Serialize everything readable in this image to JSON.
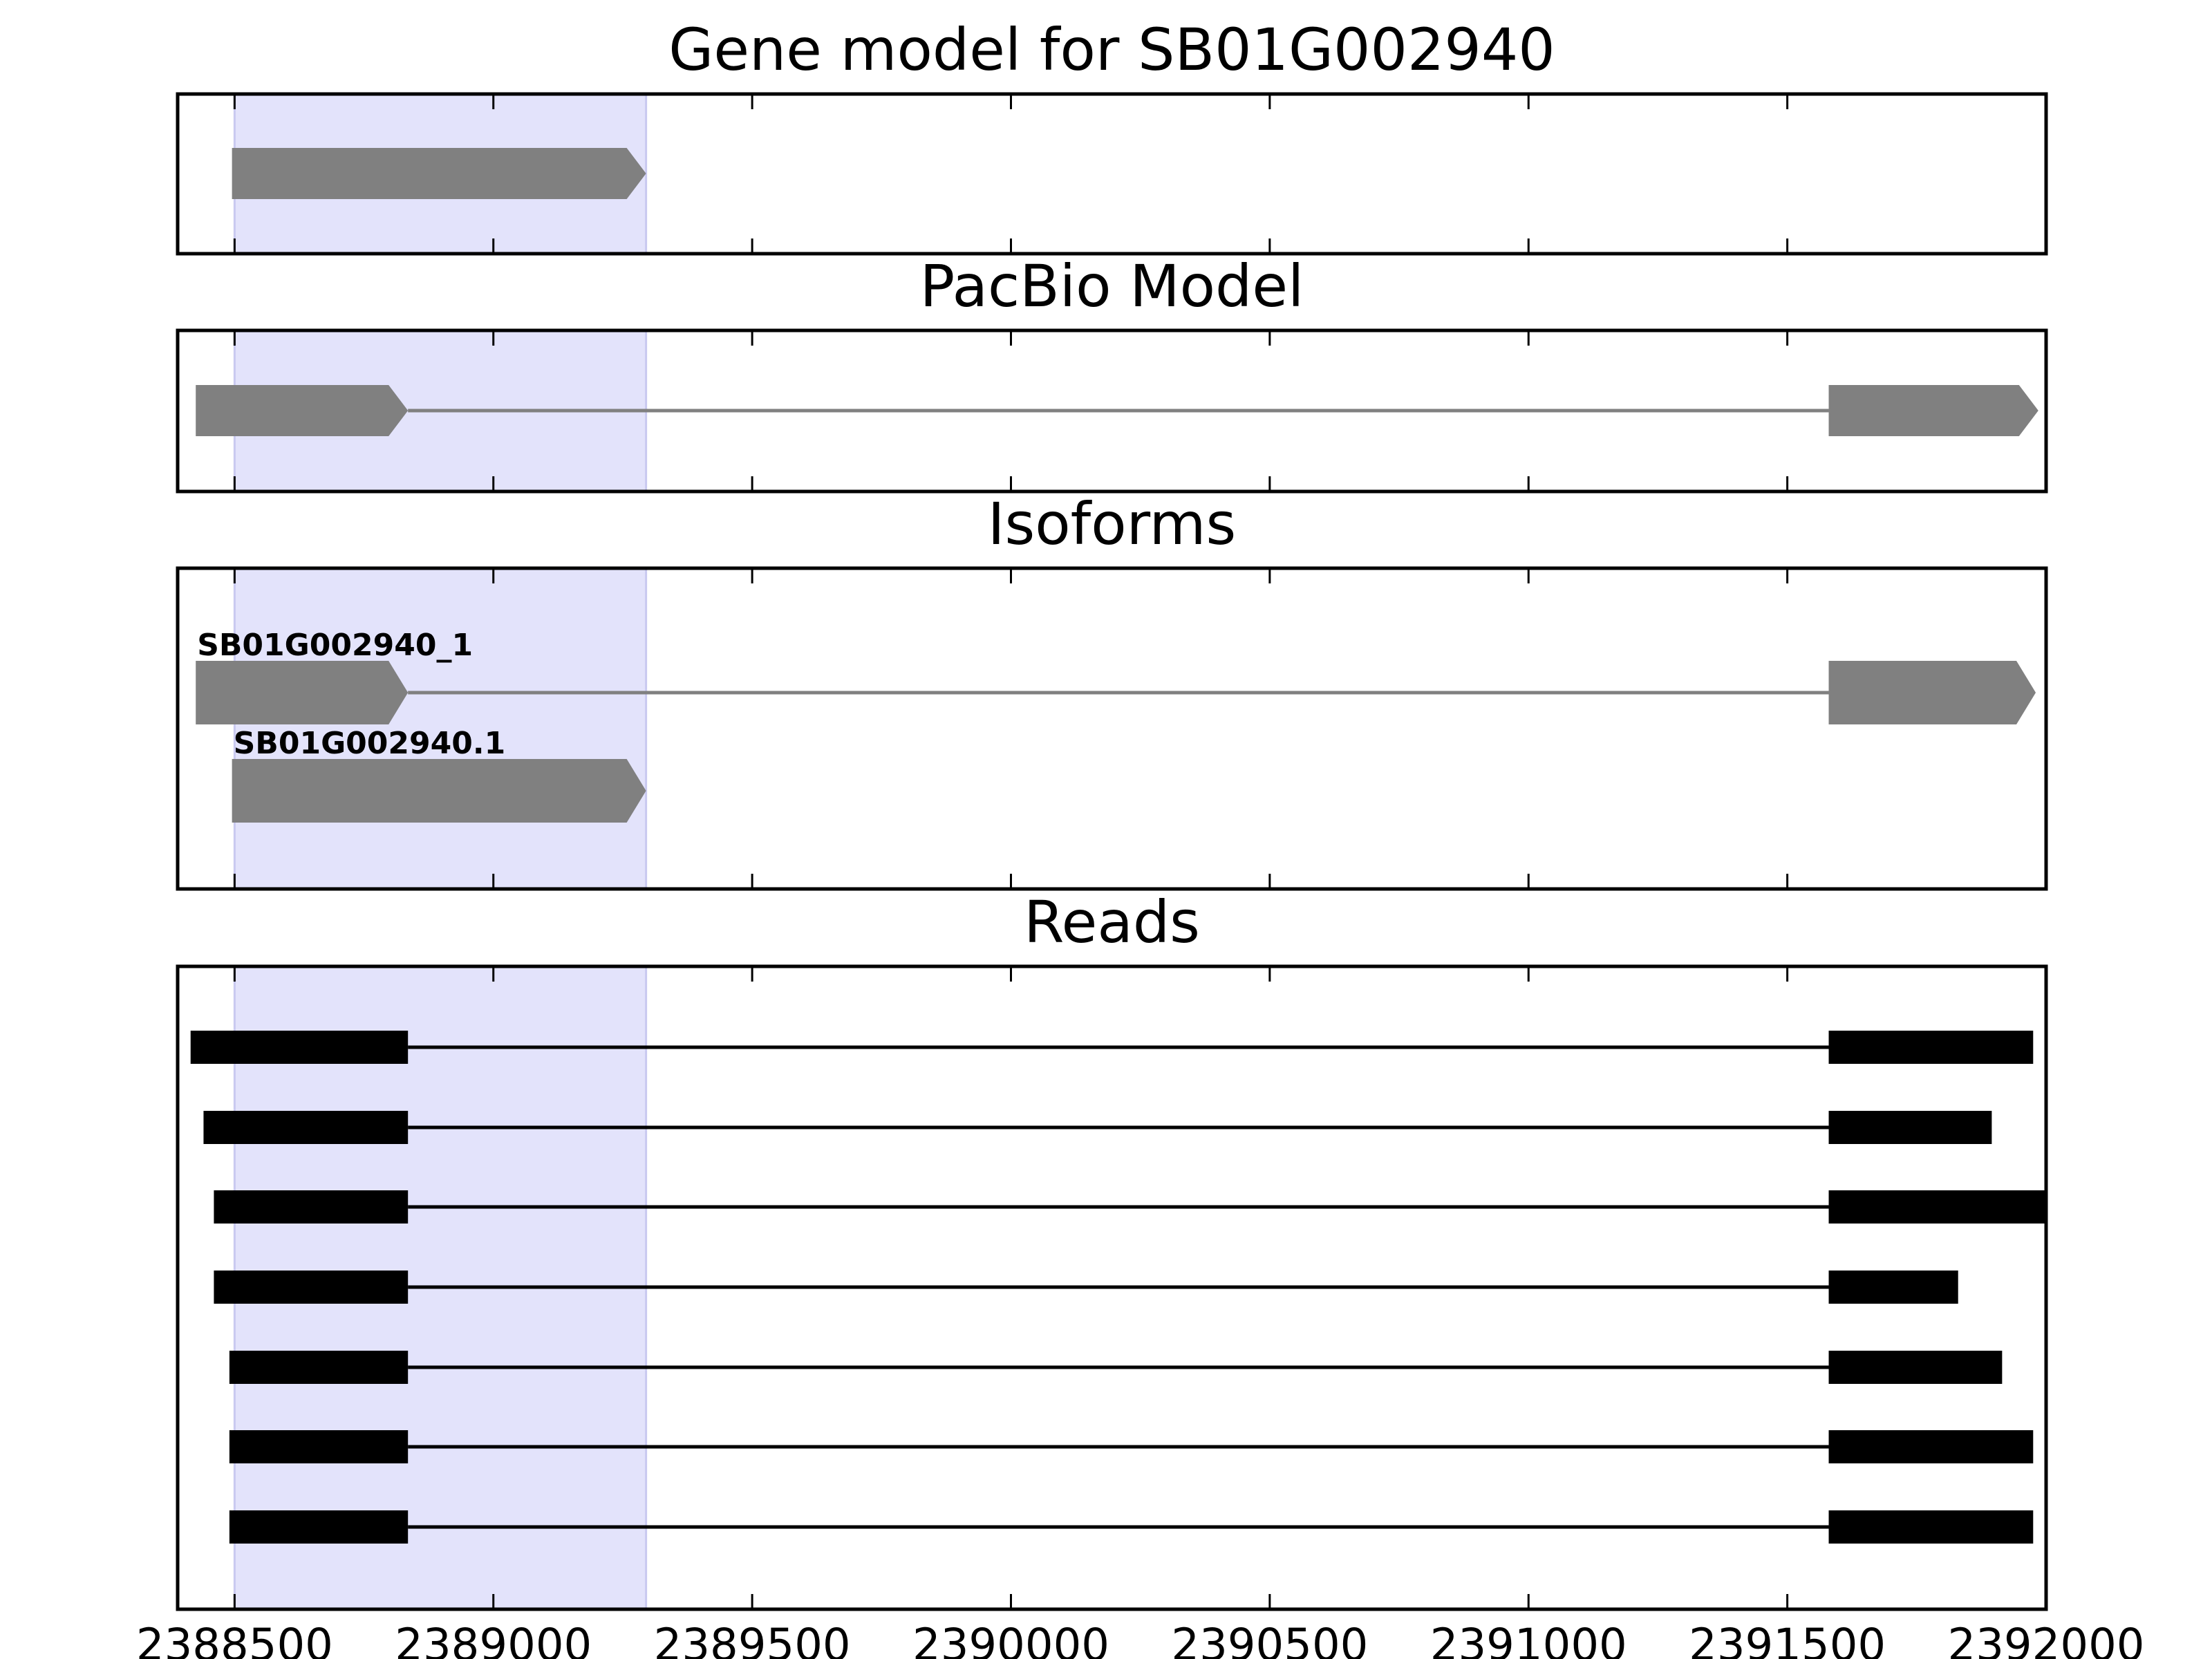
{
  "chart_data": {
    "type": "gene-track",
    "x_range": [
      2388390,
      2392000
    ],
    "x_ticks": [
      2388500,
      2389000,
      2389500,
      2390000,
      2390500,
      2391000,
      2391500,
      2392000
    ],
    "x_tick_labels": [
      "2388500",
      "2389000",
      "2389500",
      "2390000",
      "2390500",
      "2391000",
      "2391500",
      "2392000"
    ],
    "highlight_region": {
      "start": 2388500,
      "end": 2389295,
      "color": "#e3e3fb"
    },
    "colors": {
      "feature": "#808080",
      "read": "#000000",
      "frame": "#000000"
    },
    "strand": "+",
    "panels": [
      {
        "title": "Gene model for SB01G002940",
        "tracks": [
          {
            "label": "",
            "exons": [
              [
                2388495,
                2389295
              ]
            ]
          }
        ]
      },
      {
        "title": "PacBio Model",
        "tracks": [
          {
            "label": "",
            "exons": [
              [
                2388425,
                2388835
              ],
              [
                2391580,
                2391985
              ]
            ]
          }
        ]
      },
      {
        "title": "Isoforms",
        "tracks": [
          {
            "label": "SB01G002940_1",
            "exons": [
              [
                2388425,
                2388835
              ],
              [
                2391580,
                2391980
              ]
            ]
          },
          {
            "label": "SB01G002940.1",
            "exons": [
              [
                2388495,
                2389295
              ]
            ]
          }
        ]
      },
      {
        "title": "Reads",
        "tracks": [
          {
            "label": "",
            "exons": [
              [
                2388415,
                2388835
              ],
              [
                2391580,
                2391975
              ]
            ]
          },
          {
            "label": "",
            "exons": [
              [
                2388440,
                2388835
              ],
              [
                2391580,
                2391895
              ]
            ]
          },
          {
            "label": "",
            "exons": [
              [
                2388460,
                2388835
              ],
              [
                2391580,
                2392000
              ]
            ]
          },
          {
            "label": "",
            "exons": [
              [
                2388460,
                2388835
              ],
              [
                2391580,
                2391830
              ]
            ]
          },
          {
            "label": "",
            "exons": [
              [
                2388490,
                2388835
              ],
              [
                2391580,
                2391915
              ]
            ]
          },
          {
            "label": "",
            "exons": [
              [
                2388490,
                2388835
              ],
              [
                2391580,
                2391975
              ]
            ]
          },
          {
            "label": "",
            "exons": [
              [
                2388490,
                2388835
              ],
              [
                2391580,
                2391975
              ]
            ]
          }
        ]
      }
    ]
  }
}
